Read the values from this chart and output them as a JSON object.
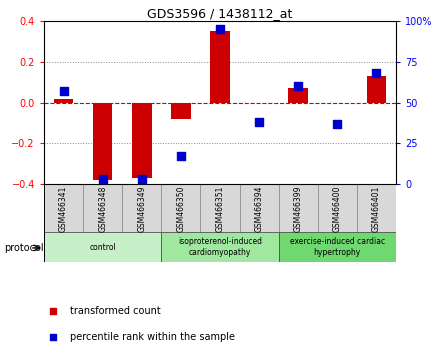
{
  "title": "GDS3596 / 1438112_at",
  "samples": [
    "GSM466341",
    "GSM466348",
    "GSM466349",
    "GSM466350",
    "GSM466351",
    "GSM466394",
    "GSM466399",
    "GSM466400",
    "GSM466401"
  ],
  "transformed_count": [
    0.02,
    -0.38,
    -0.37,
    -0.08,
    0.35,
    0.0,
    0.07,
    0.0,
    0.13
  ],
  "percentile_rank": [
    57,
    3,
    3,
    17,
    95,
    38,
    60,
    37,
    68
  ],
  "groups": [
    {
      "label": "control",
      "start": 0,
      "end": 3,
      "color": "#c8f0c8"
    },
    {
      "label": "isoproterenol-induced\ncardiomyopathy",
      "start": 3,
      "end": 6,
      "color": "#a0e8a0"
    },
    {
      "label": "exercise-induced cardiac\nhypertrophy",
      "start": 6,
      "end": 9,
      "color": "#70d870"
    }
  ],
  "bar_color": "#cc0000",
  "dot_color": "#0000cc",
  "zero_line_color": "#cc0000",
  "grid_color": "#888888",
  "ylim": [
    -0.4,
    0.4
  ],
  "y2lim": [
    0,
    100
  ],
  "yticks": [
    -0.4,
    -0.2,
    0.0,
    0.2,
    0.4
  ],
  "y2ticks": [
    0,
    25,
    50,
    75,
    100
  ],
  "y2ticklabels": [
    "0",
    "25",
    "50",
    "75",
    "100%"
  ],
  "legend_red_label": "transformed count",
  "legend_blue_label": "percentile rank within the sample",
  "protocol_label": "protocol",
  "sample_box_color": "#d8d8d8",
  "bar_width": 0.5,
  "dot_size": 30
}
